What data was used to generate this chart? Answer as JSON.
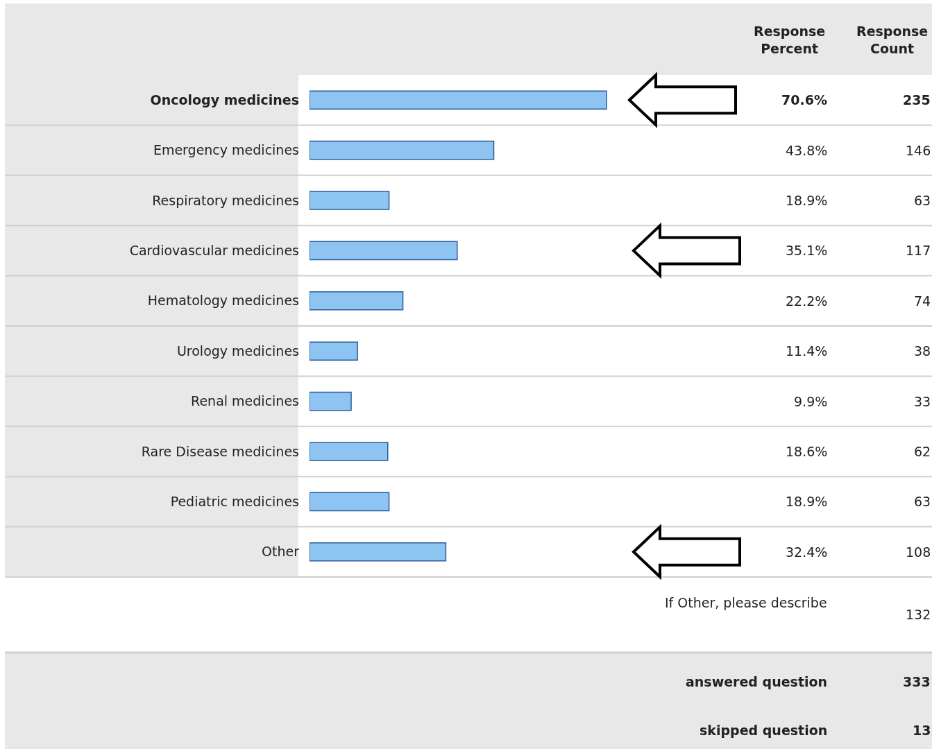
{
  "chart_data": {
    "type": "bar",
    "orientation": "horizontal",
    "categories": [
      "Oncology medicines",
      "Emergency medicines",
      "Respiratory medicines",
      "Cardiovascular medicines",
      "Hematology medicines",
      "Urology medicines",
      "Renal medicines",
      "Rare Disease medicines",
      "Pediatric medicines",
      "Other"
    ],
    "values": [
      70.6,
      43.8,
      18.9,
      35.1,
      22.2,
      11.4,
      9.9,
      18.6,
      18.9,
      32.4
    ],
    "value_labels": [
      "70.6%",
      "43.8%",
      "18.9%",
      "35.1%",
      "22.2%",
      "11.4%",
      "9.9%",
      "18.6%",
      "18.9%",
      "32.4%"
    ],
    "color": "#8ec4f2",
    "annotations": [
      "Response Percent",
      "Response Count",
      "235",
      "146",
      "63",
      "117",
      "74",
      "38",
      "33",
      "62",
      "63",
      "108",
      "If Other, please describe",
      "132",
      "answered question",
      "333",
      "skipped question",
      "13"
    ],
    "legend": false
  }
}
